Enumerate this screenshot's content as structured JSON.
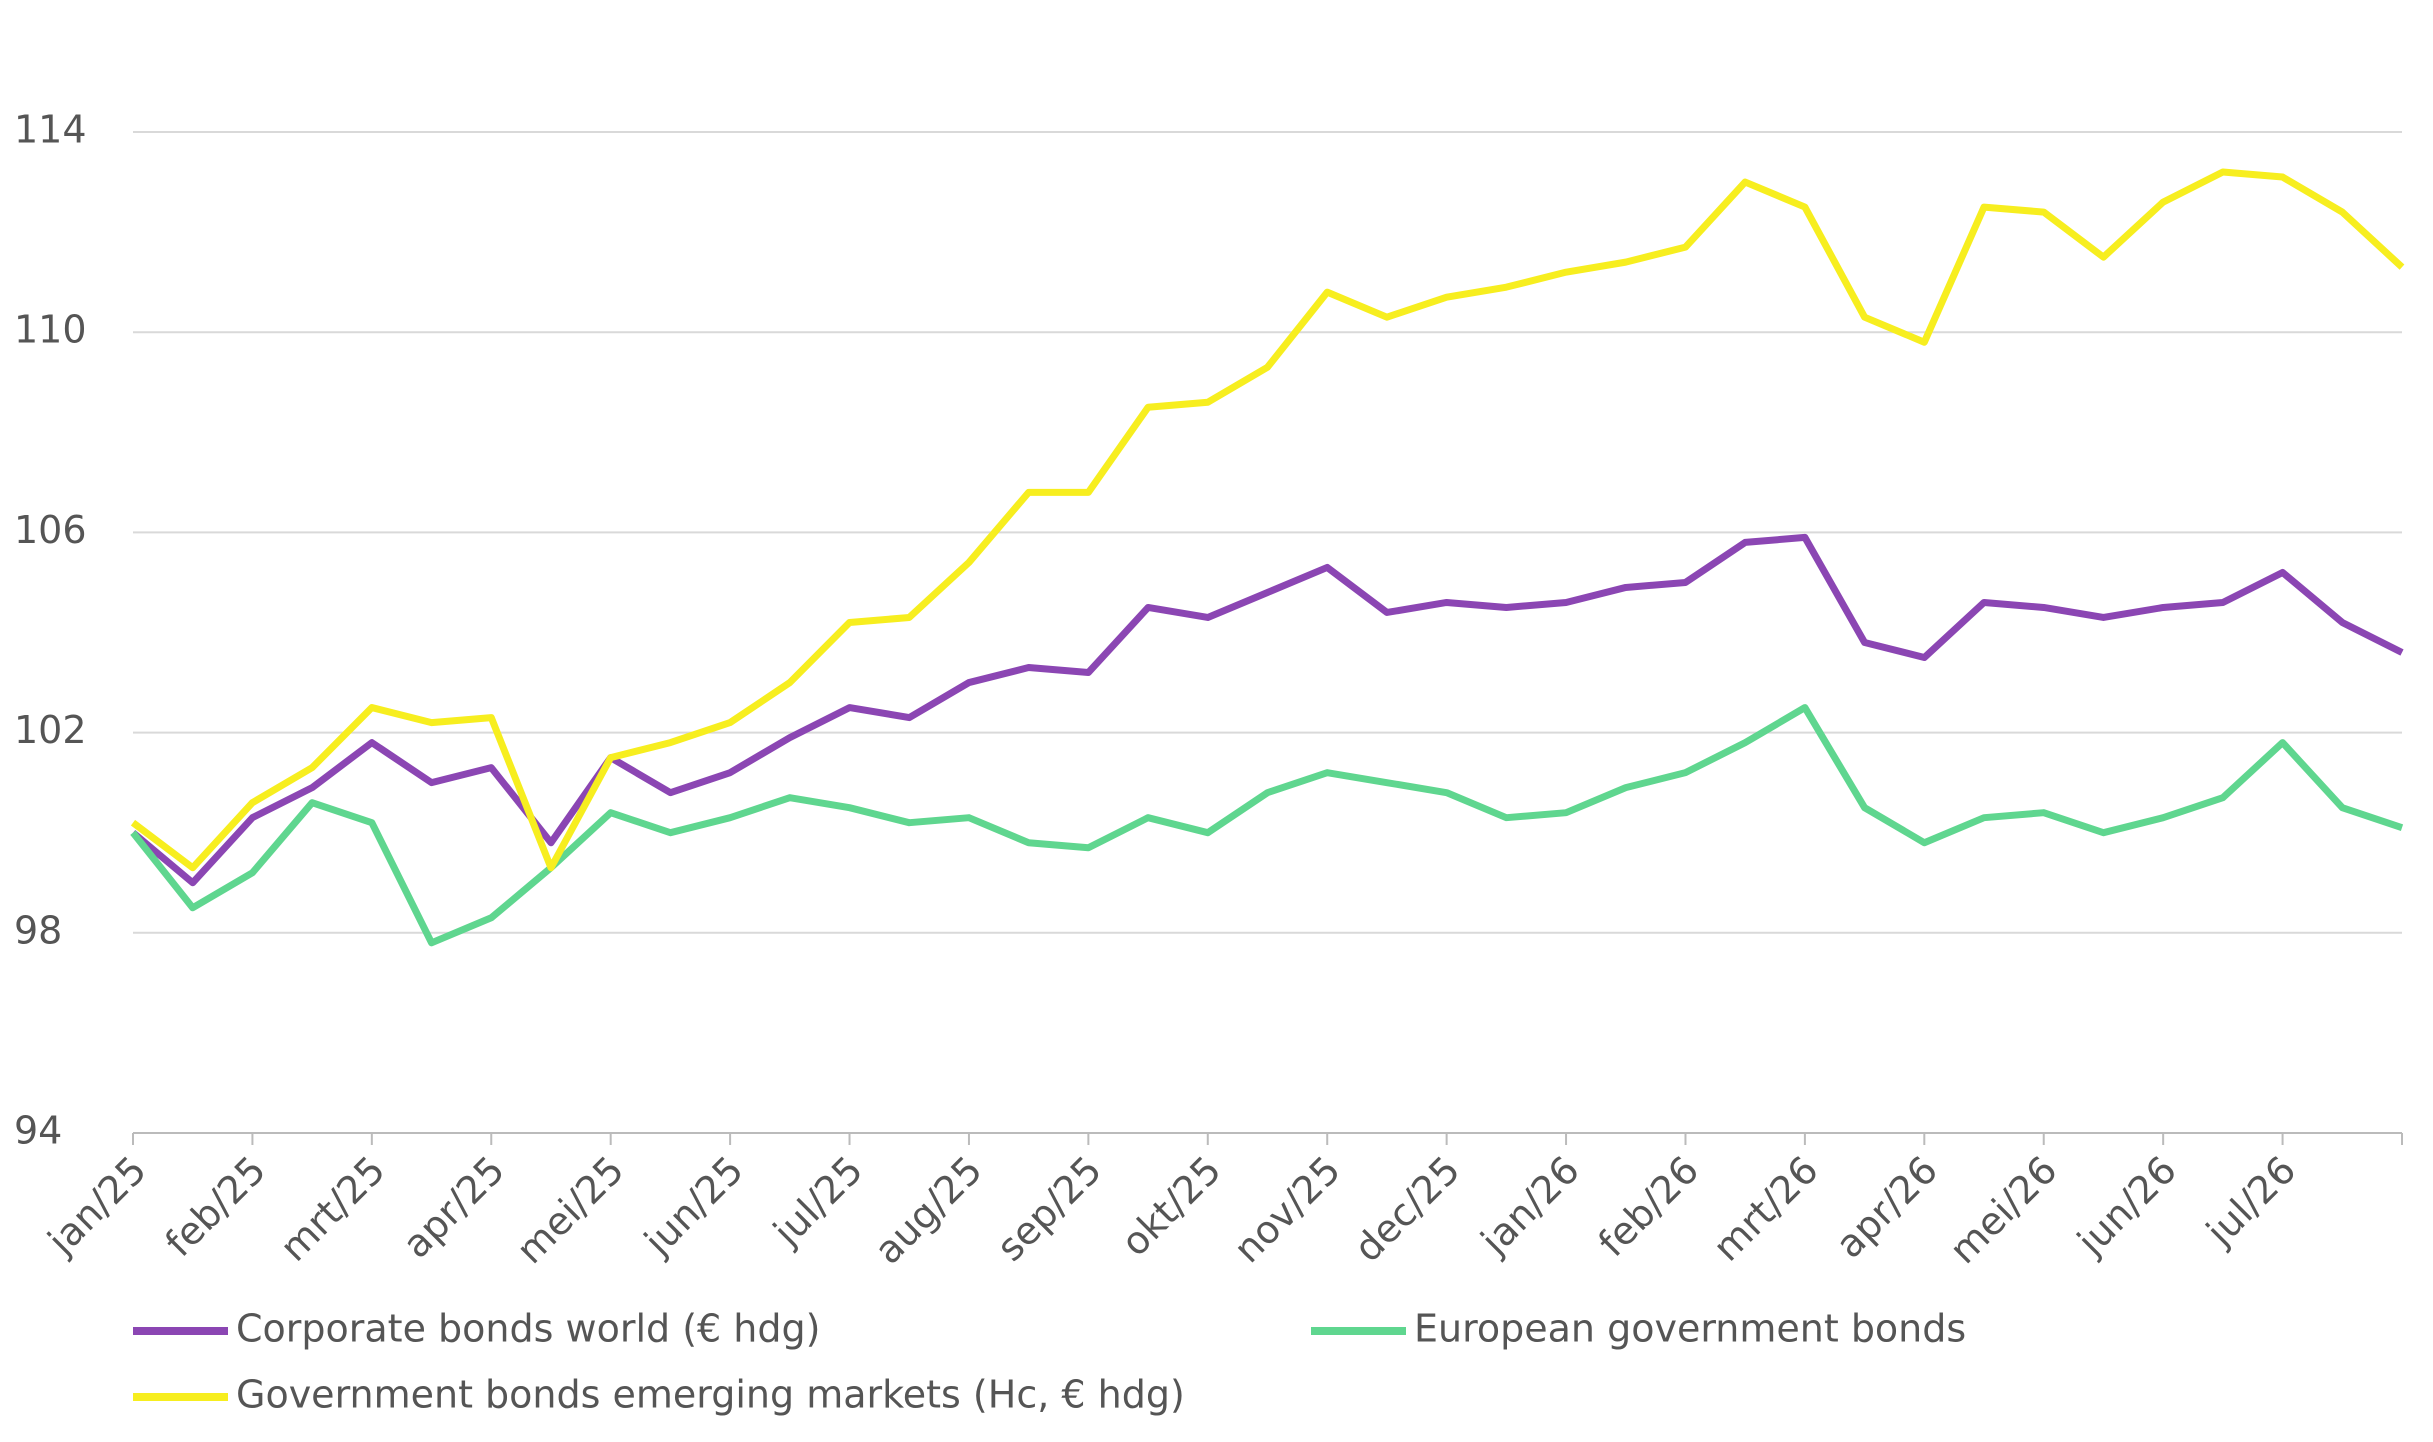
{
  "chart_data": {
    "type": "line",
    "categories": [
      "jan/25",
      null,
      "feb/25",
      null,
      "mrt/25",
      null,
      "apr/25",
      null,
      "mei/25",
      null,
      "jun/25",
      null,
      "jul/25",
      null,
      "aug/25",
      null,
      "sep/25",
      null,
      "okt/25",
      null,
      "nov/25",
      null,
      "dec/25",
      null,
      "jan/26",
      null,
      "feb/26",
      null,
      "mrt/26",
      null,
      "apr/26",
      null,
      "mei/26",
      null,
      "jun/26",
      null,
      "jul/26",
      null,
      null
    ],
    "series": [
      {
        "name": "Corporate bonds world (€ hdg)",
        "color": "#8b46b3",
        "values": [
          100.0,
          99.0,
          100.3,
          100.9,
          101.8,
          101.0,
          101.3,
          99.8,
          101.5,
          100.8,
          101.2,
          101.9,
          102.5,
          102.3,
          103.0,
          103.3,
          103.2,
          104.5,
          104.3,
          104.8,
          105.3,
          104.4,
          104.6,
          104.5,
          104.6,
          104.9,
          105.0,
          105.8,
          105.9,
          103.8,
          103.5,
          104.6,
          104.5,
          104.3,
          104.5,
          104.6,
          105.2,
          104.2,
          103.6
        ]
      },
      {
        "name": "European government bonds",
        "color": "#5fd68f",
        "values": [
          100.0,
          98.5,
          99.2,
          100.6,
          100.2,
          97.8,
          98.3,
          99.3,
          100.4,
          100.0,
          100.3,
          100.7,
          100.5,
          100.2,
          100.3,
          99.8,
          99.7,
          100.3,
          100.0,
          100.8,
          101.2,
          101.0,
          100.8,
          100.3,
          100.4,
          100.9,
          101.2,
          101.8,
          102.5,
          100.5,
          99.8,
          100.3,
          100.4,
          100.0,
          100.3,
          100.7,
          101.8,
          100.5,
          100.1
        ]
      },
      {
        "name": "Government bonds emerging markets (Hc, € hdg)",
        "color": "#f7ee1f",
        "values": [
          100.2,
          99.3,
          100.6,
          101.3,
          102.5,
          102.2,
          102.3,
          99.3,
          101.5,
          101.8,
          102.2,
          103.0,
          104.2,
          104.3,
          105.4,
          106.8,
          106.8,
          108.5,
          108.6,
          109.3,
          110.8,
          110.3,
          110.7,
          110.9,
          111.2,
          111.4,
          111.7,
          113.0,
          112.5,
          110.3,
          109.8,
          112.5,
          112.4,
          111.5,
          112.6,
          113.2,
          113.1,
          112.4,
          111.3
        ]
      }
    ],
    "ylim": [
      94,
      114
    ],
    "yticks": [
      94,
      98,
      102,
      106,
      110,
      114
    ],
    "grid": true
  }
}
